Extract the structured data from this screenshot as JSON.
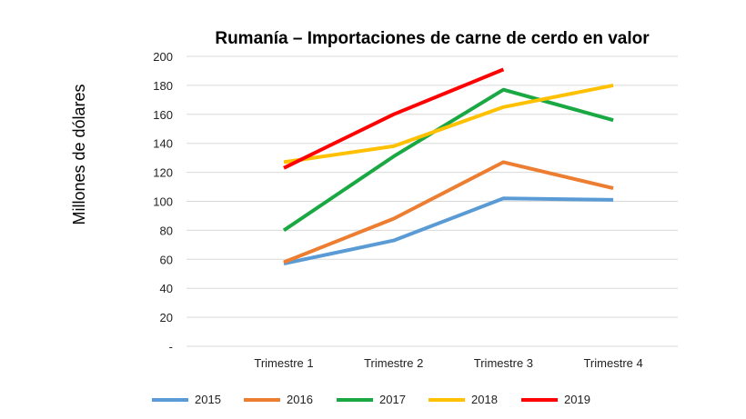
{
  "chart_data": {
    "type": "line",
    "title": "Rumanía – Importaciones de carne de cerdo en valor",
    "xlabel": "",
    "ylabel": "Millones de dólares",
    "categories": [
      "Trimestre 1",
      "Trimestre 2",
      "Trimestre 3",
      "Trimestre 4"
    ],
    "ylim": [
      0,
      200
    ],
    "yticks": [
      {
        "value": 0,
        "label": "-"
      },
      {
        "value": 20,
        "label": "20"
      },
      {
        "value": 40,
        "label": "40"
      },
      {
        "value": 60,
        "label": "60"
      },
      {
        "value": 80,
        "label": "80"
      },
      {
        "value": 100,
        "label": "100"
      },
      {
        "value": 120,
        "label": "120"
      },
      {
        "value": 140,
        "label": "140"
      },
      {
        "value": 160,
        "label": "160"
      },
      {
        "value": 180,
        "label": "180"
      },
      {
        "value": 200,
        "label": "200"
      }
    ],
    "grid": true,
    "legend": "bottom",
    "series": [
      {
        "name": "2015",
        "color": "#5b9bd5",
        "values": [
          57,
          73,
          102,
          101
        ]
      },
      {
        "name": "2016",
        "color": "#ed7d31",
        "values": [
          58,
          88,
          127,
          109
        ]
      },
      {
        "name": "2017",
        "color": "#1aa842",
        "values": [
          80,
          131,
          177,
          156
        ]
      },
      {
        "name": "2018",
        "color": "#ffc000",
        "values": [
          127,
          138,
          165,
          180
        ]
      },
      {
        "name": "2019",
        "color": "#ff0000",
        "values": [
          123,
          160,
          191,
          null
        ]
      }
    ]
  }
}
